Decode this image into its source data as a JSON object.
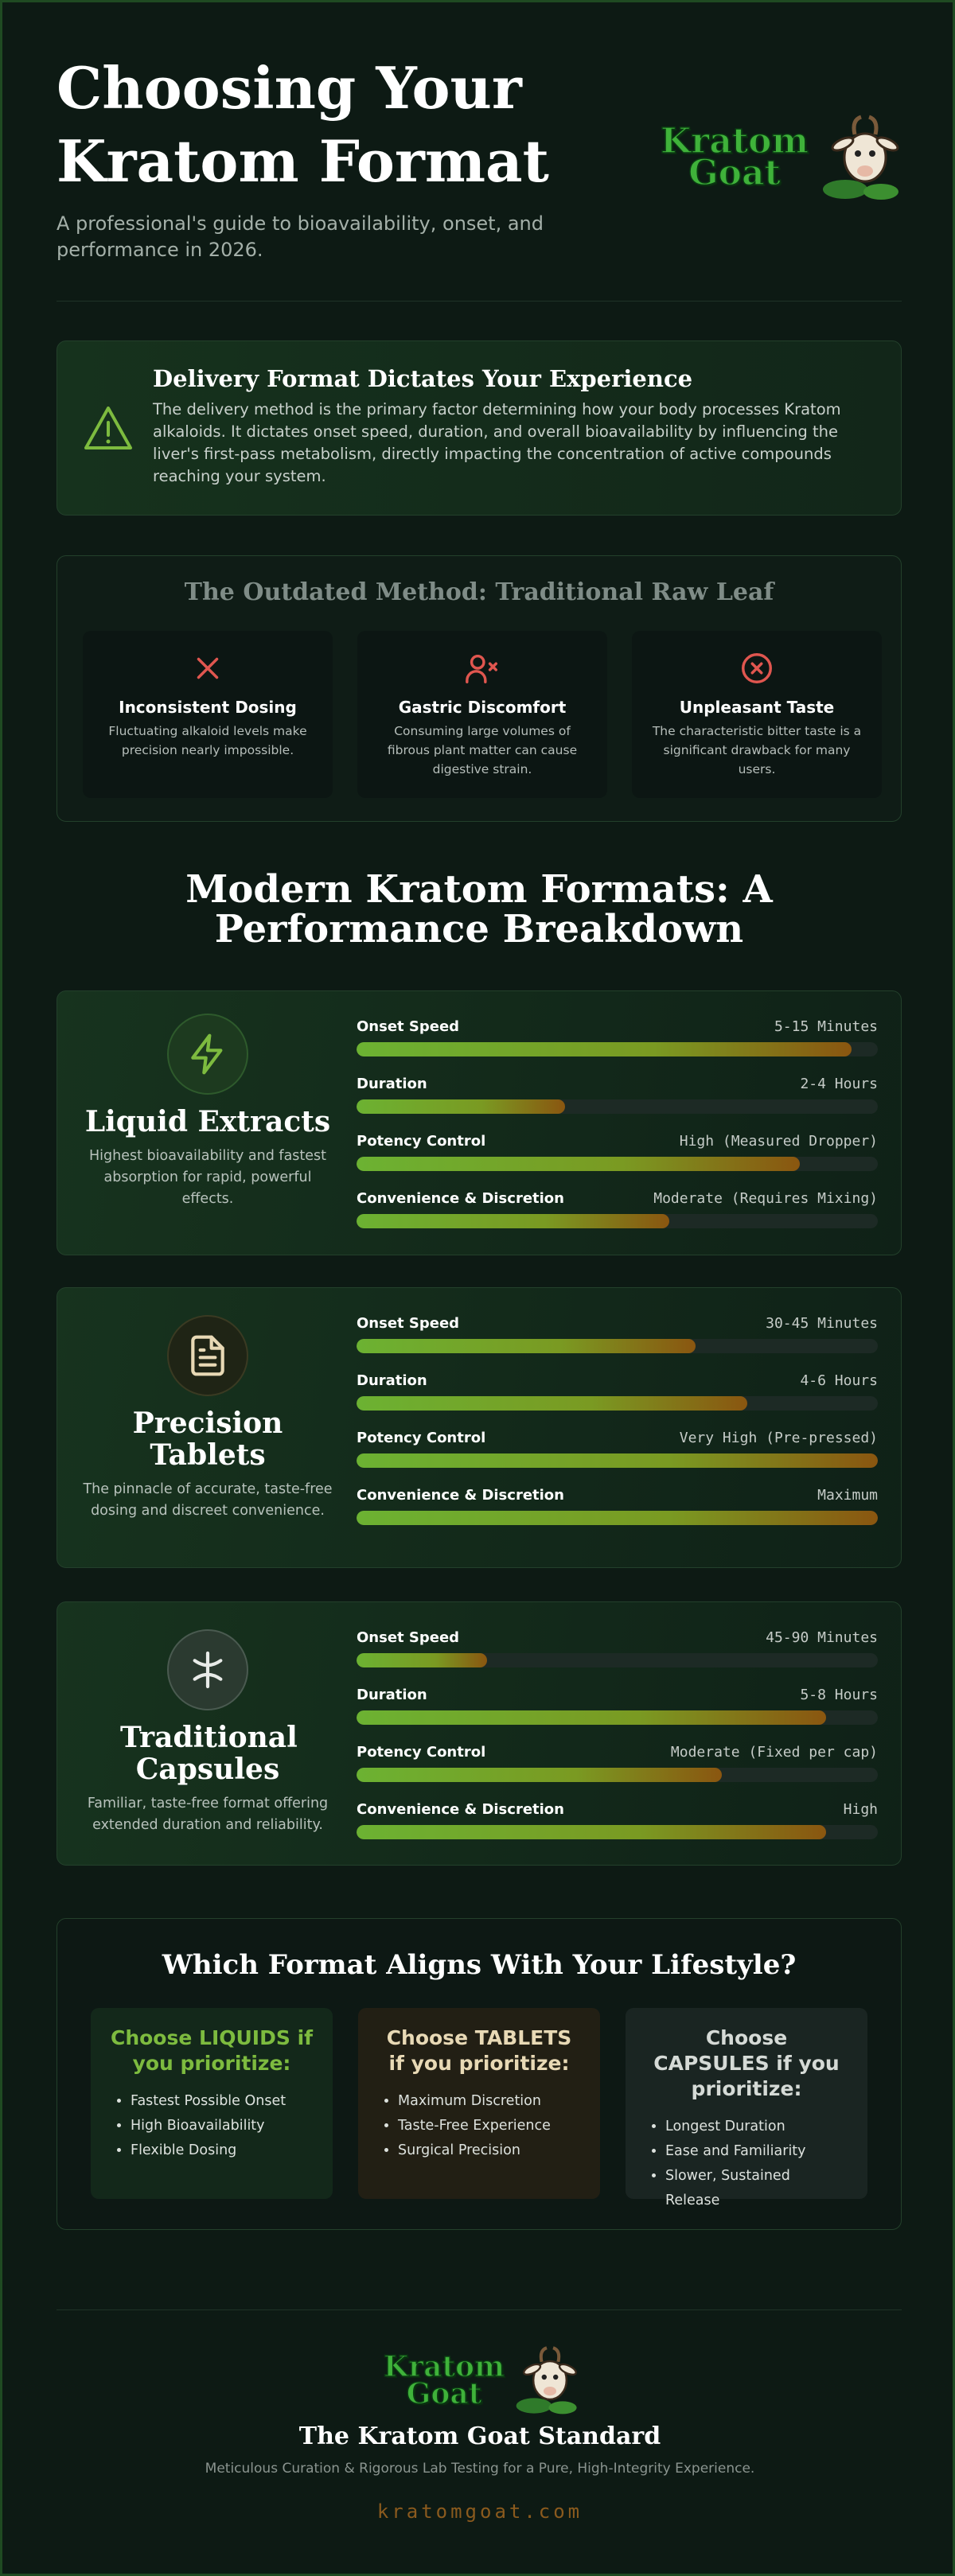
{
  "header": {
    "title": "Choosing Your Kratom Format",
    "subtitle": "A professional's guide to bioavailability, onset, and performance in 2026.",
    "logo": "Kratom Goat"
  },
  "alert": {
    "title": "Delivery Format Dictates Your Experience",
    "text": "The delivery method is the primary factor determining how your body processes Kratom alkaloids. It dictates onset speed, duration, and overall bioavailability by influencing the liver's first-pass metabolism, directly impacting the concentration of active compounds reaching your system."
  },
  "outdated": {
    "title": "The Outdated Method: Traditional Raw Leaf",
    "items": [
      {
        "title": "Inconsistent Dosing",
        "text": "Fluctuating alkaloid levels make precision nearly impossible."
      },
      {
        "title": "Gastric Discomfort",
        "text": "Consuming large volumes of fibrous plant matter can cause digestive strain."
      },
      {
        "title": "Unpleasant Taste",
        "text": "The characteristic bitter taste is a significant drawback for many users."
      }
    ]
  },
  "modern": {
    "title": "Modern Kratom Formats: A Performance Breakdown",
    "formats": [
      {
        "name": "Liquid Extracts",
        "text": "Highest bioavailability and fastest absorption for rapid, powerful effects.",
        "metrics": [
          {
            "label": "Onset Speed",
            "value": "5-15 Minutes",
            "level": 95
          },
          {
            "label": "Duration",
            "value": "2-4 Hours",
            "level": 40
          },
          {
            "label": "Potency Control",
            "value": "High (Measured Dropper)",
            "level": 85
          },
          {
            "label": "Convenience & Discretion",
            "value": "Moderate (Requires Mixing)",
            "level": 60
          }
        ]
      },
      {
        "name": "Precision Tablets",
        "text": "The pinnacle of accurate, taste-free dosing and discreet convenience.",
        "metrics": [
          {
            "label": "Onset Speed",
            "value": "30-45 Minutes",
            "level": 65
          },
          {
            "label": "Duration",
            "value": "4-6 Hours",
            "level": 75
          },
          {
            "label": "Potency Control",
            "value": "Very High (Pre-pressed)",
            "level": 100
          },
          {
            "label": "Convenience & Discretion",
            "value": "Maximum",
            "level": 100
          }
        ]
      },
      {
        "name": "Traditional Capsules",
        "text": "Familiar, taste-free format offering extended duration and reliability.",
        "metrics": [
          {
            "label": "Onset Speed",
            "value": "45-90 Minutes",
            "level": 25
          },
          {
            "label": "Duration",
            "value": "5-8 Hours",
            "level": 90
          },
          {
            "label": "Potency Control",
            "value": "Moderate (Fixed per cap)",
            "level": 70
          },
          {
            "label": "Convenience & Discretion",
            "value": "High",
            "level": 90
          }
        ]
      }
    ]
  },
  "lifestyle": {
    "title": "Which Format Aligns With Your Lifestyle?",
    "choices": [
      {
        "title": "Choose LIQUIDS if you prioritize:",
        "items": [
          "Fastest Possible Onset",
          "High Bioavailability",
          "Flexible Dosing"
        ]
      },
      {
        "title": "Choose TABLETS if you prioritize:",
        "items": [
          "Maximum Discretion",
          "Taste-Free Experience",
          "Surgical Precision"
        ]
      },
      {
        "title": "Choose CAPSULES if you prioritize:",
        "items": [
          "Longest Duration",
          "Ease and Familiarity",
          "Slower, Sustained Release"
        ]
      }
    ]
  },
  "footer": {
    "logo": "Kratom Goat",
    "title": "The Kratom Goat Standard",
    "tagline": "Meticulous Curation & Rigorous Lab Testing for a Pure, High-Integrity Experience.",
    "url": "kratomgoat.com"
  }
}
